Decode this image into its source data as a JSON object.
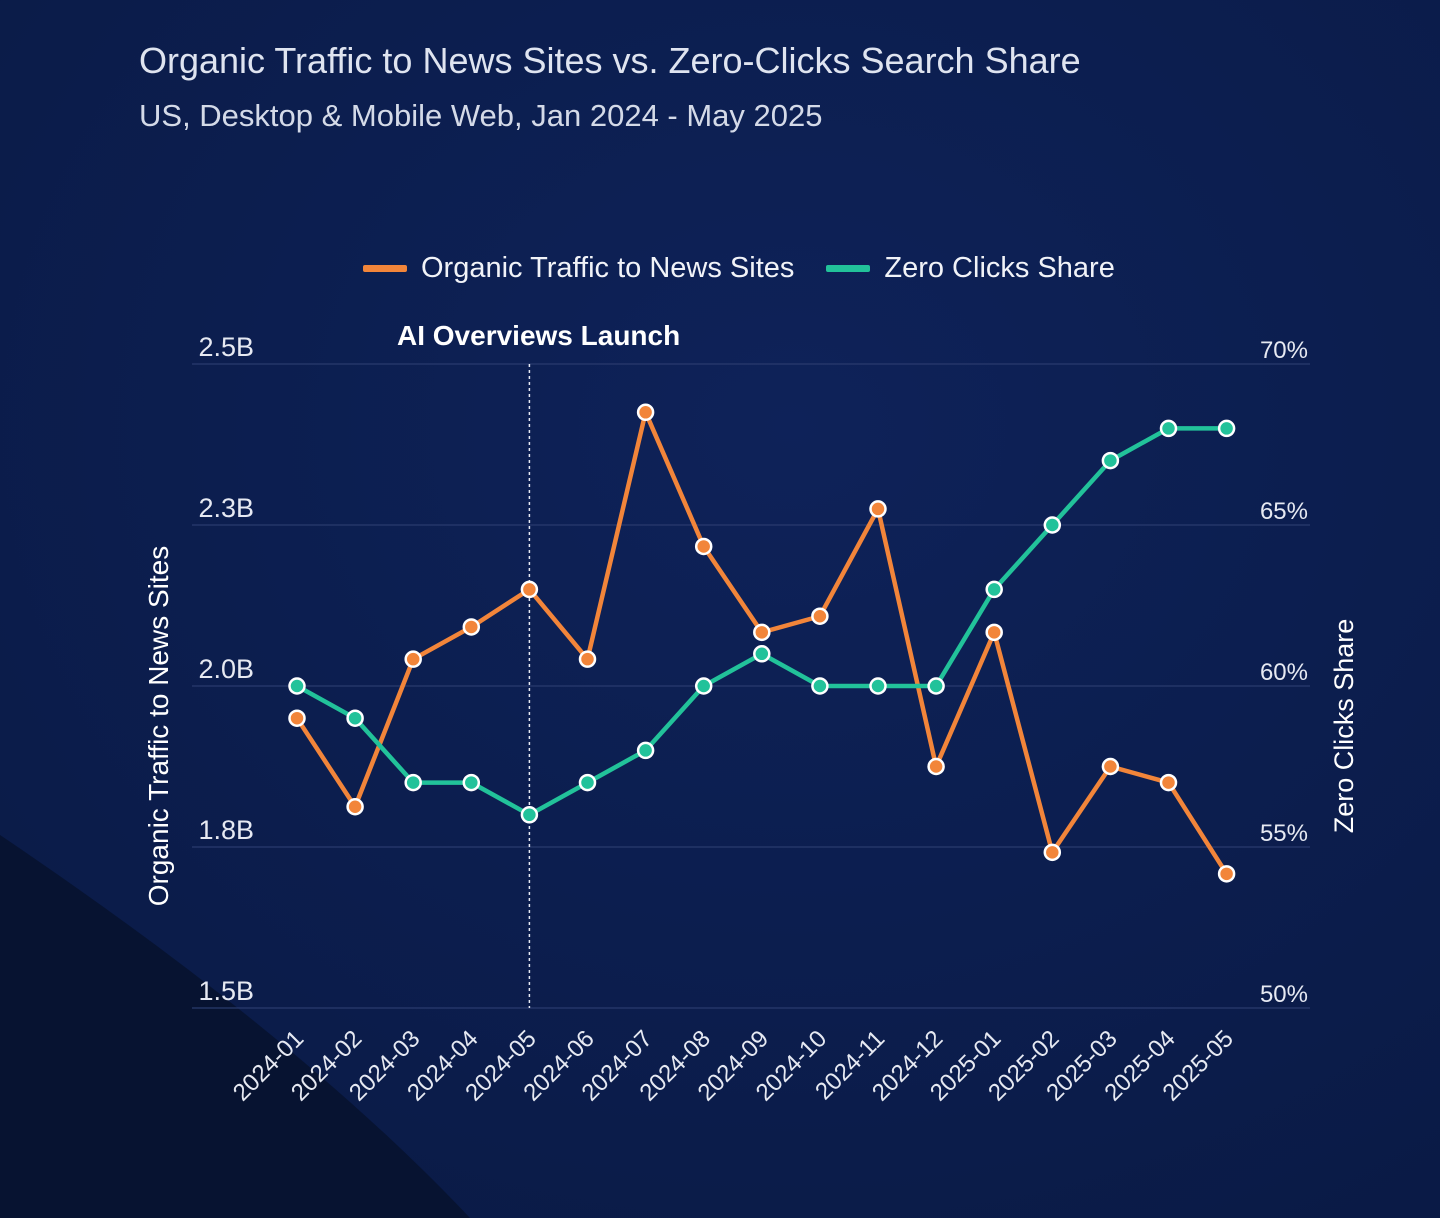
{
  "colors": {
    "background": "#0c1c4a",
    "background_dark": "#071331",
    "traffic": "#f2853a",
    "zero_clicks": "#22c29a",
    "grid": "#2a3b6e"
  },
  "chart_data": {
    "type": "line",
    "title": "Organic Traffic to News Sites vs. Zero-Clicks Search Share",
    "subtitle": "US, Desktop & Mobile Web, Jan 2024 - May 2025",
    "x": [
      "2024-01",
      "2024-02",
      "2024-03",
      "2024-04",
      "2024-05",
      "2024-06",
      "2024-07",
      "2024-08",
      "2024-09",
      "2024-10",
      "2024-11",
      "2024-12",
      "2025-01",
      "2025-02",
      "2025-03",
      "2025-04",
      "2025-05"
    ],
    "series": [
      {
        "name": "Organic Traffic to News Sites",
        "axis": "left",
        "color": "#f2853a",
        "values": [
          1960000000.0,
          1850000000.0,
          2050000000.0,
          2110000000.0,
          2180000000.0,
          2050000000.0,
          2440000000.0,
          2260000000.0,
          2100000000.0,
          2130000000.0,
          2320000000.0,
          1900000000.0,
          2100000000.0,
          1790000000.0,
          1900000000.0,
          1880000000.0,
          1750000000.0
        ]
      },
      {
        "name": "Zero Clicks Share",
        "axis": "right",
        "color": "#22c29a",
        "values": [
          60,
          59,
          57,
          57,
          56,
          57,
          58,
          60,
          61,
          60,
          60,
          60,
          63,
          65,
          67,
          68,
          68
        ]
      }
    ],
    "ylabel": "Organic Traffic to News Sites",
    "y2label": "Zero Clicks Share",
    "yticks": [
      {
        "value": 1500000000.0,
        "label": "1.5B"
      },
      {
        "value": 1800000000.0,
        "label": "1.8B"
      },
      {
        "value": 2000000000.0,
        "label": "2.0B"
      },
      {
        "value": 2300000000.0,
        "label": "2.3B"
      },
      {
        "value": 2500000000.0,
        "label": "2.5B"
      }
    ],
    "y2ticks": [
      {
        "value": 50,
        "label": "50%"
      },
      {
        "value": 55,
        "label": "55%"
      },
      {
        "value": 60,
        "label": "60%"
      },
      {
        "value": 65,
        "label": "65%"
      },
      {
        "value": 70,
        "label": "70%"
      }
    ],
    "y2lim": [
      50,
      70
    ],
    "grid": true,
    "legend": "top-center",
    "annotation": {
      "label": "AI Overviews Launch",
      "x": "2024-05"
    }
  }
}
